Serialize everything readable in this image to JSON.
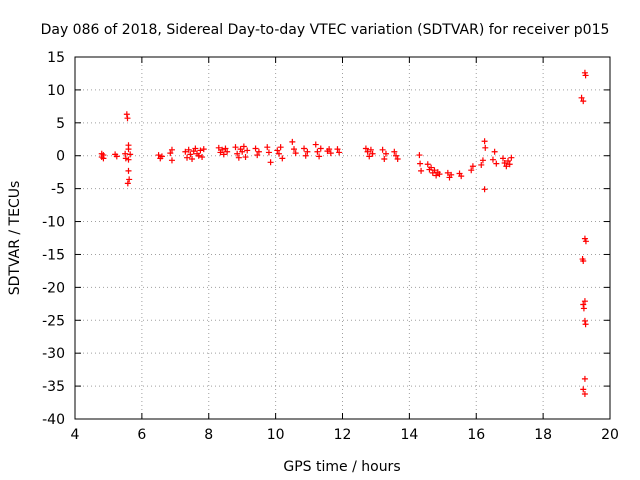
{
  "chart_data": {
    "type": "scatter",
    "title": "Day 086 of 2018, Sidereal Day-to-day VTEC variation (SDTVAR) for receiver p015",
    "xlabel": "GPS time / hours",
    "ylabel": "SDTVAR / TECUs",
    "xlim": [
      4,
      20
    ],
    "ylim": [
      -40,
      15
    ],
    "xticks": [
      4,
      6,
      8,
      10,
      12,
      14,
      16,
      18,
      20
    ],
    "yticks": [
      15,
      10,
      5,
      0,
      -5,
      -10,
      -15,
      -20,
      -25,
      -30,
      -35,
      -40
    ],
    "grid": true,
    "marker": "plus",
    "color": "#ff0000",
    "series": [
      {
        "name": "SDTVAR",
        "points": [
          [
            4.8,
            0.3
          ],
          [
            4.8,
            -0.2
          ],
          [
            4.85,
            0.1
          ],
          [
            4.85,
            -0.4
          ],
          [
            5.2,
            0.2
          ],
          [
            5.25,
            -0.1
          ],
          [
            5.5,
            0.3
          ],
          [
            5.52,
            -0.4
          ],
          [
            5.55,
            6.3
          ],
          [
            5.57,
            5.7
          ],
          [
            5.6,
            1.6
          ],
          [
            5.6,
            1.0
          ],
          [
            5.6,
            -0.6
          ],
          [
            5.6,
            -2.3
          ],
          [
            5.62,
            -3.6
          ],
          [
            5.58,
            -4.2
          ],
          [
            5.65,
            0.2
          ],
          [
            6.5,
            0.1
          ],
          [
            6.55,
            -0.4
          ],
          [
            6.6,
            -0.1
          ],
          [
            6.85,
            0.4
          ],
          [
            6.9,
            -0.7
          ],
          [
            6.9,
            0.9
          ],
          [
            7.3,
            0.6
          ],
          [
            7.35,
            -0.3
          ],
          [
            7.4,
            0.9
          ],
          [
            7.45,
            0.2
          ],
          [
            7.5,
            -0.5
          ],
          [
            7.55,
            0.7
          ],
          [
            7.6,
            1.1
          ],
          [
            7.65,
            0.3
          ],
          [
            7.7,
            0.0
          ],
          [
            7.75,
            0.8
          ],
          [
            7.8,
            -0.2
          ],
          [
            7.85,
            1.0
          ],
          [
            8.3,
            1.2
          ],
          [
            8.35,
            0.5
          ],
          [
            8.4,
            0.9
          ],
          [
            8.45,
            0.2
          ],
          [
            8.5,
            1.1
          ],
          [
            8.55,
            0.6
          ],
          [
            8.8,
            1.3
          ],
          [
            8.85,
            0.3
          ],
          [
            8.9,
            -0.3
          ],
          [
            8.95,
            1.0
          ],
          [
            9.0,
            0.6
          ],
          [
            9.05,
            1.4
          ],
          [
            9.1,
            -0.2
          ],
          [
            9.15,
            0.8
          ],
          [
            9.4,
            1.1
          ],
          [
            9.45,
            0.1
          ],
          [
            9.5,
            0.6
          ],
          [
            9.75,
            1.3
          ],
          [
            9.8,
            0.5
          ],
          [
            9.85,
            -1.0
          ],
          [
            10.05,
            0.8
          ],
          [
            10.1,
            0.3
          ],
          [
            10.15,
            1.3
          ],
          [
            10.2,
            -0.4
          ],
          [
            10.5,
            2.1
          ],
          [
            10.55,
            1.0
          ],
          [
            10.6,
            0.4
          ],
          [
            10.85,
            1.1
          ],
          [
            10.9,
            0.0
          ],
          [
            10.95,
            0.6
          ],
          [
            11.2,
            1.7
          ],
          [
            11.25,
            0.6
          ],
          [
            11.3,
            -0.1
          ],
          [
            11.35,
            1.1
          ],
          [
            11.55,
            0.7
          ],
          [
            11.6,
            1.0
          ],
          [
            11.65,
            0.4
          ],
          [
            11.85,
            1.0
          ],
          [
            11.9,
            0.5
          ],
          [
            12.7,
            1.1
          ],
          [
            12.75,
            0.6
          ],
          [
            12.8,
            -0.1
          ],
          [
            12.85,
            0.9
          ],
          [
            12.9,
            0.3
          ],
          [
            13.2,
            0.9
          ],
          [
            13.25,
            -0.5
          ],
          [
            13.3,
            0.3
          ],
          [
            13.55,
            0.6
          ],
          [
            13.6,
            0.0
          ],
          [
            13.65,
            -0.5
          ],
          [
            14.3,
            0.1
          ],
          [
            14.32,
            -1.2
          ],
          [
            14.35,
            -2.3
          ],
          [
            14.55,
            -1.3
          ],
          [
            14.6,
            -2.1
          ],
          [
            14.65,
            -1.8
          ],
          [
            14.7,
            -2.6
          ],
          [
            14.75,
            -2.2
          ],
          [
            14.8,
            -3.0
          ],
          [
            14.85,
            -2.5
          ],
          [
            14.9,
            -2.8
          ],
          [
            15.15,
            -2.6
          ],
          [
            15.2,
            -3.3
          ],
          [
            15.25,
            -2.9
          ],
          [
            15.5,
            -2.7
          ],
          [
            15.55,
            -3.1
          ],
          [
            15.85,
            -2.2
          ],
          [
            15.9,
            -1.6
          ],
          [
            16.15,
            -1.4
          ],
          [
            16.2,
            -0.7
          ],
          [
            16.25,
            2.2
          ],
          [
            16.27,
            1.2
          ],
          [
            16.25,
            -5.1
          ],
          [
            16.5,
            -0.6
          ],
          [
            16.55,
            0.6
          ],
          [
            16.6,
            -1.2
          ],
          [
            16.8,
            -0.4
          ],
          [
            16.85,
            -1.1
          ],
          [
            16.9,
            -1.6
          ],
          [
            16.95,
            -0.8
          ],
          [
            17.0,
            -1.3
          ],
          [
            17.05,
            -0.3
          ],
          [
            19.15,
            8.8
          ],
          [
            19.2,
            8.3
          ],
          [
            19.25,
            12.6
          ],
          [
            19.27,
            12.2
          ],
          [
            19.25,
            -12.6
          ],
          [
            19.28,
            -13.0
          ],
          [
            19.18,
            -15.7
          ],
          [
            19.2,
            -16.0
          ],
          [
            19.2,
            -22.6
          ],
          [
            19.22,
            -23.2
          ],
          [
            19.25,
            -22.1
          ],
          [
            19.25,
            -25.1
          ],
          [
            19.27,
            -25.6
          ],
          [
            19.25,
            -33.9
          ],
          [
            19.2,
            -35.5
          ],
          [
            19.25,
            -36.2
          ]
        ]
      }
    ]
  }
}
